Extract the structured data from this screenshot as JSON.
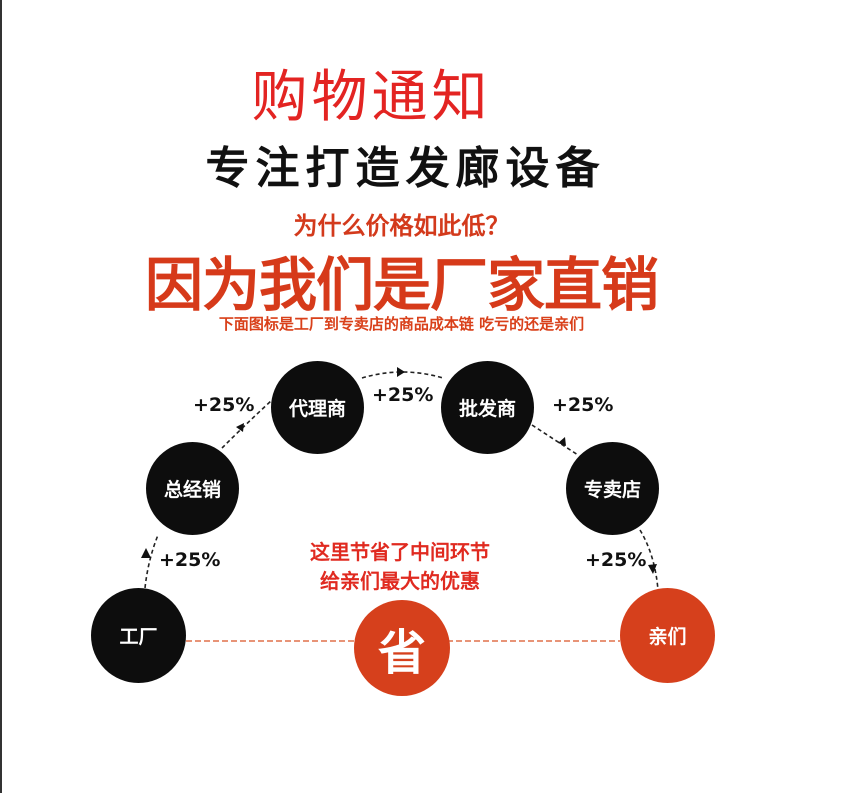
{
  "title": "购物通知",
  "subtitle": "专注打造发廊设备",
  "question": "为什么价格如此低？",
  "headline": "因为我们是厂家直销",
  "note": "下面图标是工厂到专卖店的商品成本链 吃亏的还是亲们",
  "nodes": [
    {
      "label": "工厂",
      "color": "#0d0d0d"
    },
    {
      "label": "总经销",
      "color": "#0d0d0d"
    },
    {
      "label": "代理商",
      "color": "#0d0d0d"
    },
    {
      "label": "批发商",
      "color": "#0d0d0d"
    },
    {
      "label": "专卖店",
      "color": "#0d0d0d"
    },
    {
      "label": "亲们",
      "color": "#d6401c"
    }
  ],
  "markups": [
    "+25%",
    "+25%",
    "+25%",
    "+25%",
    "+25%"
  ],
  "savings": {
    "icon_label": "省",
    "line1": "这里节省了中间环节",
    "line2": "给亲们最大的优惠"
  },
  "colors": {
    "accent": "#d6401c",
    "title": "#e32422"
  }
}
